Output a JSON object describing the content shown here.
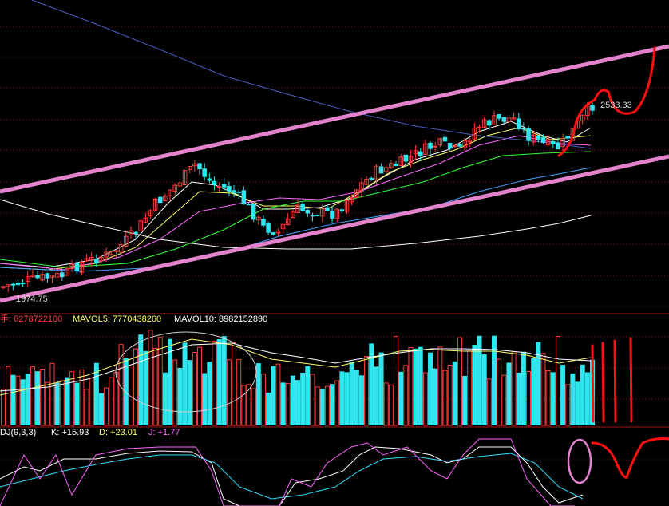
{
  "chart_data": [
    {
      "type": "candlestick",
      "panel": "price",
      "price_labels": {
        "high": "2533.33",
        "low": "1974.75"
      },
      "moving_average_colors": [
        "#ffffff",
        "#ffff66",
        "#ff66ff",
        "#33ff33",
        "#3fa0ff",
        "#4a5dbe"
      ],
      "channel_line_color": "#e383cd",
      "annotation_color": "#ff1010"
    },
    {
      "type": "bar",
      "panel": "volume",
      "legend": {
        "vol": "手: 6278722100",
        "mavol5": "MAVOL5: 7770438260",
        "mavol10": "MAVOL10: 8982152890"
      },
      "up_color": "#ff3b3b",
      "down_color": "#2ee6ee"
    },
    {
      "type": "line",
      "panel": "indicator",
      "legend": {
        "name": "DJ(9,3,3)",
        "k": "K: +15.93",
        "d": "D: +23.01",
        "j": "J: +1.77"
      },
      "series_colors": {
        "k": "#ffffff",
        "d": "#33ddff",
        "j": "#ff66ff"
      }
    }
  ]
}
